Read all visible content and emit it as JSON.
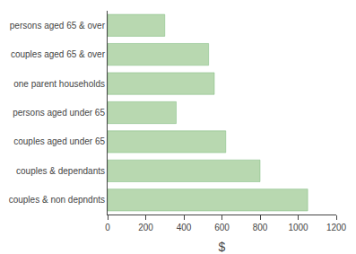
{
  "chart_data": {
    "type": "bar",
    "orientation": "horizontal",
    "categories": [
      "couples & non depndnts",
      "couples & dependants",
      "couples aged under 65",
      "persons aged under 65",
      "one parent households",
      "couples aged 65 & over",
      "persons aged 65 & over"
    ],
    "values": [
      1050,
      800,
      620,
      360,
      560,
      530,
      300
    ],
    "color": "#b8d8b0",
    "xlabel": "$",
    "xlim": [
      0,
      1200
    ],
    "xticks": [
      0,
      200,
      400,
      600,
      800,
      1000,
      1200
    ],
    "grid": false
  }
}
